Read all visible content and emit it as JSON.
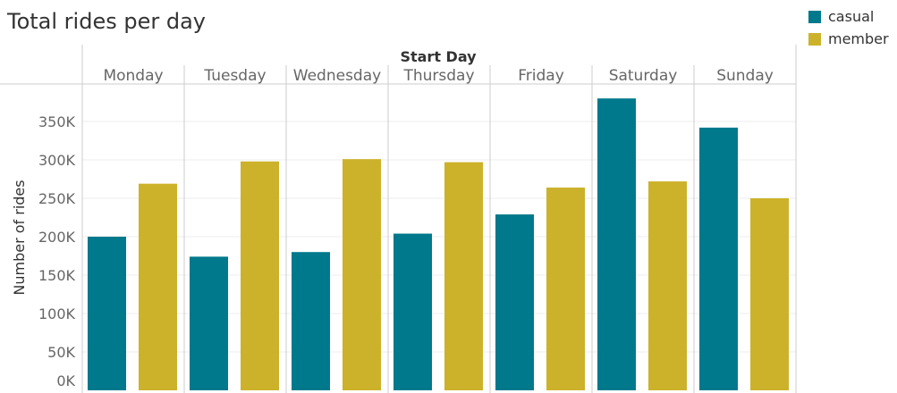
{
  "chart_data": {
    "type": "bar",
    "title": "Total rides per day",
    "xlabel": "Start Day",
    "ylabel": "Number of rides",
    "categories": [
      "Monday",
      "Tuesday",
      "Wednesday",
      "Thursday",
      "Friday",
      "Saturday",
      "Sunday"
    ],
    "series": [
      {
        "name": "casual",
        "color": "#00798c",
        "values": [
          200000,
          174000,
          180000,
          204000,
          229000,
          380000,
          342000
        ]
      },
      {
        "name": "member",
        "color": "#ccb22b",
        "values": [
          269000,
          298000,
          301000,
          297000,
          264000,
          272000,
          250000
        ]
      }
    ],
    "ylim": [
      0,
      390000
    ],
    "yticks": [
      0,
      50000,
      100000,
      150000,
      200000,
      250000,
      300000,
      350000
    ],
    "ytick_labels": [
      "0K",
      "50K",
      "100K",
      "150K",
      "200K",
      "250K",
      "300K",
      "350K"
    ],
    "grid": true,
    "legend_position": "top-right"
  }
}
